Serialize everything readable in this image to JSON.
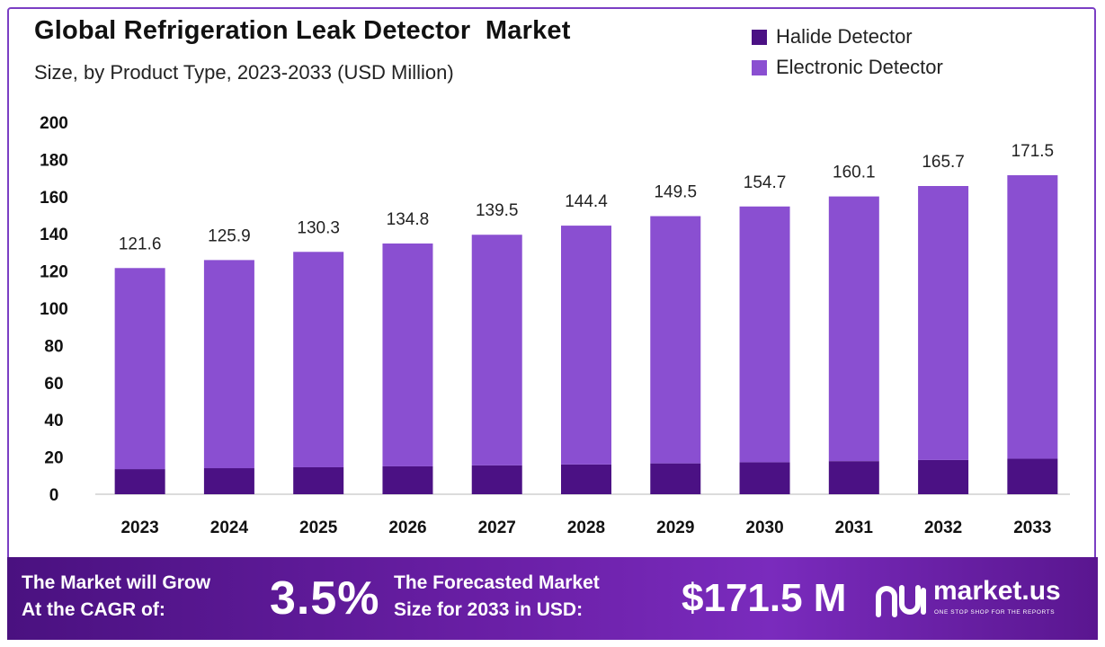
{
  "header": {
    "title": "Global Refrigeration Leak Detector  Market",
    "subtitle": "Size, by Product Type, 2023-2033 (USD Million)"
  },
  "legend": [
    {
      "label": "Halide Detector",
      "color": "#4b1184"
    },
    {
      "label": "Electronic Detector",
      "color": "#8a4fd1"
    }
  ],
  "chart_data": {
    "type": "bar",
    "stacked": true,
    "title": "Global Refrigeration Leak Detector  Market",
    "subtitle": "Size, by Product Type, 2023-2033 (USD Million)",
    "xlabel": "",
    "ylabel": "",
    "ylim": [
      0,
      200
    ],
    "yticks": [
      0,
      20,
      40,
      60,
      80,
      100,
      120,
      140,
      160,
      180,
      200
    ],
    "categories": [
      "2023",
      "2024",
      "2025",
      "2026",
      "2027",
      "2028",
      "2029",
      "2030",
      "2031",
      "2032",
      "2033"
    ],
    "series": [
      {
        "name": "Halide Detector",
        "color": "#4b1184",
        "values": [
          13.5,
          14.0,
          14.5,
          15.0,
          15.5,
          16.0,
          16.6,
          17.2,
          17.8,
          18.4,
          19.1
        ]
      },
      {
        "name": "Electronic Detector",
        "color": "#8a4fd1",
        "values": [
          108.1,
          111.9,
          115.8,
          119.8,
          124.0,
          128.4,
          132.9,
          137.5,
          142.3,
          147.3,
          152.4
        ]
      }
    ],
    "totals": [
      121.6,
      125.9,
      130.3,
      134.8,
      139.5,
      144.4,
      149.5,
      154.7,
      160.1,
      165.7,
      171.5
    ],
    "total_labels": [
      "121.6",
      "125.9",
      "130.3",
      "134.8",
      "139.5",
      "144.4",
      "149.5",
      "154.7",
      "160.1",
      "165.7",
      "171.5"
    ],
    "grid": false,
    "legend_position": "top-right"
  },
  "footer": {
    "cagr_text_line1": "The Market will Grow",
    "cagr_text_line2": "At the CAGR of:",
    "cagr_value": "3.5%",
    "forecast_text_line1": "The Forecasted Market",
    "forecast_text_line2": "Size for 2033 in USD:",
    "forecast_value": "$171.5 M",
    "brand": "market.us",
    "tagline": "ONE STOP SHOP FOR THE REPORTS"
  }
}
